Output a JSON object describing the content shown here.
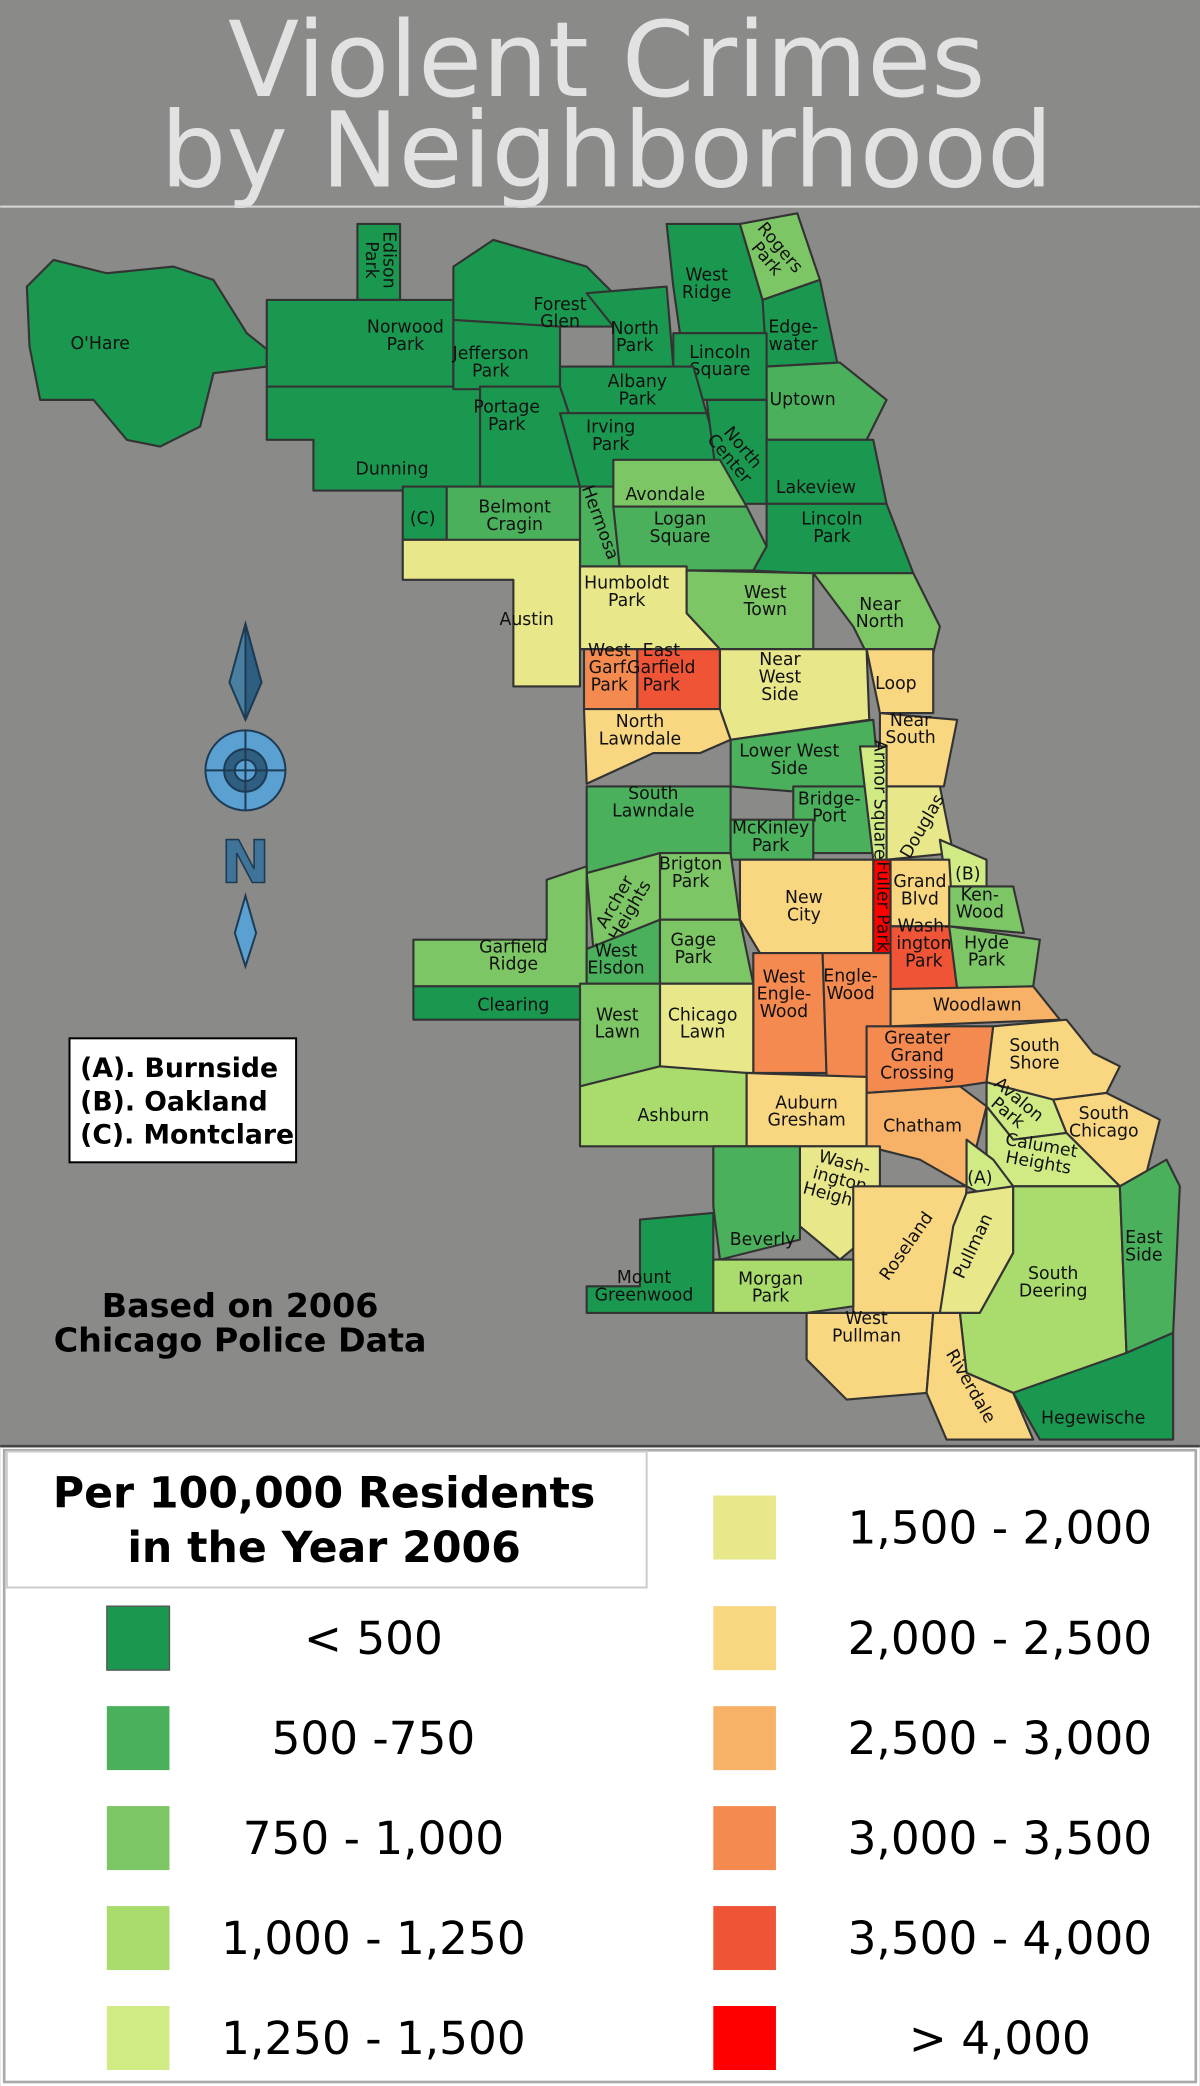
{
  "title": {
    "line1": "Violent Crimes",
    "line2": "by Neighborhood"
  },
  "key_box": {
    "a": "(A). Burnside",
    "b": "(B). Oakland",
    "c": "(C). Montclare"
  },
  "source_note": {
    "line1": "Based on 2006",
    "line2": "Chicago Police Data"
  },
  "compass": {
    "letter": "N"
  },
  "legend": {
    "title_line1": "Per 100,000 Residents",
    "title_line2": "in the Year 2006",
    "bins": [
      {
        "label": "< 500",
        "color": "#1a9850"
      },
      {
        "label": "500 -750",
        "color": "#4bb05c"
      },
      {
        "label": "750 - 1,000",
        "color": "#7dc665"
      },
      {
        "label": "1,000 - 1,250",
        "color": "#aadc6d"
      },
      {
        "label": "1,250 - 1,500",
        "color": "#d0ea84"
      },
      {
        "label": "1,500 - 2,000",
        "color": "#e8e78a"
      },
      {
        "label": "2,000 - 2,500",
        "color": "#f9d680"
      },
      {
        "label": "2,500 - 3,000",
        "color": "#f8b267"
      },
      {
        "label": "3,000 - 3,500",
        "color": "#f48a50"
      },
      {
        "label": "3,500 - 4,000",
        "color": "#ee5435"
      },
      {
        "label": "> 4,000",
        "color": "#ff0000"
      }
    ]
  },
  "neighborhoods": [
    {
      "id": "ohare",
      "label": [
        "O'Hare"
      ],
      "bin": 0
    },
    {
      "id": "edison-park",
      "label": [
        "Edison",
        "Park"
      ],
      "bin": 0
    },
    {
      "id": "norwood-park",
      "label": [
        "Norwood",
        "Park"
      ],
      "bin": 0
    },
    {
      "id": "dunning",
      "label": [
        "Dunning"
      ],
      "bin": 0
    },
    {
      "id": "jefferson-park",
      "label": [
        "Jefferson",
        "Park"
      ],
      "bin": 0
    },
    {
      "id": "forest-glen",
      "label": [
        "Forest",
        "Glen"
      ],
      "bin": 0
    },
    {
      "id": "north-park",
      "label": [
        "North",
        "Park"
      ],
      "bin": 0
    },
    {
      "id": "west-ridge",
      "label": [
        "West",
        "Ridge"
      ],
      "bin": 0
    },
    {
      "id": "rogers-park",
      "label": [
        "Rogers",
        "Park"
      ],
      "bin": 2
    },
    {
      "id": "edgewater",
      "label": [
        "Edge-",
        "water"
      ],
      "bin": 0
    },
    {
      "id": "lincoln-square",
      "label": [
        "Lincoln",
        "Square"
      ],
      "bin": 0
    },
    {
      "id": "albany-park",
      "label": [
        "Albany",
        "Park"
      ],
      "bin": 0
    },
    {
      "id": "uptown",
      "label": [
        "Uptown"
      ],
      "bin": 1
    },
    {
      "id": "portage-park",
      "label": [
        "Portage",
        "Park"
      ],
      "bin": 0
    },
    {
      "id": "irving-park",
      "label": [
        "Irving",
        "Park"
      ],
      "bin": 0
    },
    {
      "id": "north-center",
      "label": [
        "North",
        "Center"
      ],
      "bin": 0
    },
    {
      "id": "lakeview",
      "label": [
        "Lakeview"
      ],
      "bin": 0
    },
    {
      "id": "montclare",
      "label": [
        "(C)"
      ],
      "bin": 0
    },
    {
      "id": "belmont-cragin",
      "label": [
        "Belmont",
        "Cragin"
      ],
      "bin": 1
    },
    {
      "id": "hermosa",
      "label": [
        "Hermosa"
      ],
      "bin": 1
    },
    {
      "id": "avondale",
      "label": [
        "Avondale"
      ],
      "bin": 2
    },
    {
      "id": "logan-square",
      "label": [
        "Logan",
        "Square"
      ],
      "bin": 1
    },
    {
      "id": "lincoln-park",
      "label": [
        "Lincoln",
        "Park"
      ],
      "bin": 0
    },
    {
      "id": "austin",
      "label": [
        "Austin"
      ],
      "bin": 5
    },
    {
      "id": "humboldt-park",
      "label": [
        "Humboldt",
        "Park"
      ],
      "bin": 5
    },
    {
      "id": "west-town",
      "label": [
        "West",
        "Town"
      ],
      "bin": 2
    },
    {
      "id": "near-north",
      "label": [
        "Near",
        "North"
      ],
      "bin": 2
    },
    {
      "id": "west-garfield-park",
      "label": [
        "West",
        "Garf.",
        "Park"
      ],
      "bin": 8
    },
    {
      "id": "east-garfield-park",
      "label": [
        "East",
        "Garfield",
        "Park"
      ],
      "bin": 9
    },
    {
      "id": "near-west-side",
      "label": [
        "Near",
        "West",
        "Side"
      ],
      "bin": 5
    },
    {
      "id": "loop",
      "label": [
        "Loop"
      ],
      "bin": 6
    },
    {
      "id": "north-lawndale",
      "label": [
        "North",
        "Lawndale"
      ],
      "bin": 6
    },
    {
      "id": "near-south",
      "label": [
        "Near",
        "South"
      ],
      "bin": 6
    },
    {
      "id": "lower-west-side",
      "label": [
        "Lower West",
        "Side"
      ],
      "bin": 1
    },
    {
      "id": "south-lawndale",
      "label": [
        "South",
        "Lawndale"
      ],
      "bin": 1
    },
    {
      "id": "bridgeport",
      "label": [
        "Bridge-",
        "Port"
      ],
      "bin": 1
    },
    {
      "id": "mckinley-park",
      "label": [
        "McKinley",
        "Park"
      ],
      "bin": 1
    },
    {
      "id": "armour-square",
      "label": [
        "Armor Square"
      ],
      "bin": 4
    },
    {
      "id": "douglas",
      "label": [
        "Douglas"
      ],
      "bin": 5
    },
    {
      "id": "brighton-park",
      "label": [
        "Brigton",
        "Park"
      ],
      "bin": 2
    },
    {
      "id": "archer-heights",
      "label": [
        "Archer",
        "Heights"
      ],
      "bin": 2
    },
    {
      "id": "fuller-park",
      "label": [
        "Fuller Park"
      ],
      "bin": 10
    },
    {
      "id": "oakland",
      "label": [
        "(B)"
      ],
      "bin": 4
    },
    {
      "id": "grand-blvd",
      "label": [
        "Grand",
        "Blvd"
      ],
      "bin": 6
    },
    {
      "id": "kenwood",
      "label": [
        "Ken-",
        "Wood"
      ],
      "bin": 2
    },
    {
      "id": "new-city",
      "label": [
        "New",
        "City"
      ],
      "bin": 6
    },
    {
      "id": "garfield-ridge",
      "label": [
        "Garfield",
        "Ridge"
      ],
      "bin": 2
    },
    {
      "id": "clearing",
      "label": [
        "Clearing"
      ],
      "bin": 0
    },
    {
      "id": "west-elsdon",
      "label": [
        "West",
        "Elsdon"
      ],
      "bin": 1
    },
    {
      "id": "gage-park",
      "label": [
        "Gage",
        "Park"
      ],
      "bin": 2
    },
    {
      "id": "washington-park",
      "label": [
        "Wash-",
        "ington",
        "Park"
      ],
      "bin": 9
    },
    {
      "id": "hyde-park",
      "label": [
        "Hyde",
        "Park"
      ],
      "bin": 2
    },
    {
      "id": "west-englewood",
      "label": [
        "West",
        "Engle-",
        "Wood"
      ],
      "bin": 8
    },
    {
      "id": "englewood",
      "label": [
        "Engle-",
        "Wood"
      ],
      "bin": 8
    },
    {
      "id": "woodlawn",
      "label": [
        "Woodlawn"
      ],
      "bin": 7
    },
    {
      "id": "chicago-lawn",
      "label": [
        "Chicago",
        "Lawn"
      ],
      "bin": 5
    },
    {
      "id": "west-lawn",
      "label": [
        "West",
        "Lawn"
      ],
      "bin": 2
    },
    {
      "id": "greater-grand-crossing",
      "label": [
        "Greater",
        "Grand",
        "Crossing"
      ],
      "bin": 8
    },
    {
      "id": "south-shore",
      "label": [
        "South",
        "Shore"
      ],
      "bin": 6
    },
    {
      "id": "ashburn",
      "label": [
        "Ashburn"
      ],
      "bin": 3
    },
    {
      "id": "auburn-gresham",
      "label": [
        "Auburn",
        "Gresham"
      ],
      "bin": 6
    },
    {
      "id": "chatham",
      "label": [
        "Chatham"
      ],
      "bin": 7
    },
    {
      "id": "avalon-park",
      "label": [
        "Avalon",
        "Park"
      ],
      "bin": 4
    },
    {
      "id": "south-chicago",
      "label": [
        "South",
        "Chicago"
      ],
      "bin": 6
    },
    {
      "id": "calumet-heights",
      "label": [
        "Calumet",
        "Heights"
      ],
      "bin": 4
    },
    {
      "id": "burnside",
      "label": [
        "(A)"
      ],
      "bin": 4
    },
    {
      "id": "washington-heights",
      "label": [
        "Wash-",
        "ington",
        "Heights"
      ],
      "bin": 5
    },
    {
      "id": "beverly",
      "label": [
        "Beverly"
      ],
      "bin": 1
    },
    {
      "id": "roseland",
      "label": [
        "Roseland"
      ],
      "bin": 6
    },
    {
      "id": "pullman",
      "label": [
        "Pullman"
      ],
      "bin": 5
    },
    {
      "id": "south-deering",
      "label": [
        "South",
        "Deering"
      ],
      "bin": 3
    },
    {
      "id": "east-side",
      "label": [
        "East",
        "Side"
      ],
      "bin": 1
    },
    {
      "id": "hegewisch",
      "label": [
        "Hegewische"
      ],
      "bin": 0
    },
    {
      "id": "mount-greenwood",
      "label": [
        "Mount",
        "Greenwood"
      ],
      "bin": 0
    },
    {
      "id": "morgan-park",
      "label": [
        "Morgan",
        "Park"
      ],
      "bin": 3
    },
    {
      "id": "west-pullman",
      "label": [
        "West",
        "Pullman"
      ],
      "bin": 6
    },
    {
      "id": "riverdale",
      "label": [
        "Riverdale"
      ],
      "bin": 6
    }
  ]
}
